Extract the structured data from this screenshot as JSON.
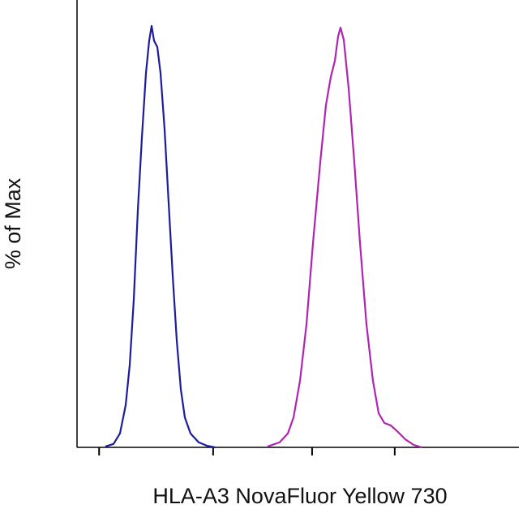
{
  "chart_data": {
    "type": "line",
    "x_label": "HLA-A3 NovaFluor Yellow 730",
    "y_label": "% of Max",
    "xlim": [
      0,
      1000
    ],
    "ylim": [
      0,
      100
    ],
    "xticks": [
      50,
      308,
      532,
      719
    ],
    "series": [
      {
        "color": "#1c1c9c",
        "x": [
          64.2,
          82.6,
          97.2,
          110.1,
          119.3,
          128.4,
          137.6,
          146.8,
          156.0,
          163.3,
          168.8,
          174.3,
          181.7,
          189.0,
          198.2,
          207.3,
          216.5,
          225.7,
          234.9,
          244.0,
          256.9,
          275.2,
          293.6,
          312.0
        ],
        "values": [
          0.2,
          0.8,
          3.3,
          10.0,
          19.6,
          35.0,
          56.2,
          73.5,
          88.8,
          96.5,
          100,
          96.5,
          95.0,
          88.8,
          75.4,
          58.1,
          40.8,
          25.4,
          13.8,
          7.1,
          3.3,
          1.2,
          0.4,
          0
        ]
      },
      {
        "color": "#b024b4",
        "x": [
          431.2,
          458.7,
          477.1,
          490.0,
          504.6,
          519.3,
          534.0,
          550.5,
          563.3,
          574.3,
          583.5,
          590.8,
          596.3,
          603.7,
          614.7,
          627.5,
          640.4,
          655.0,
          669.7,
          682.6,
          695.4,
          710.1,
          724.8,
          743.1,
          761.5,
          779.8
        ],
        "values": [
          0.2,
          1.2,
          3.3,
          7.1,
          15.8,
          29.2,
          48.5,
          67.7,
          81.2,
          87.9,
          91.7,
          97.5,
          99.6,
          96.7,
          85.2,
          67.7,
          48.5,
          29.2,
          15.8,
          8.1,
          5.8,
          5.2,
          3.8,
          1.9,
          0.6,
          0
        ]
      }
    ]
  }
}
